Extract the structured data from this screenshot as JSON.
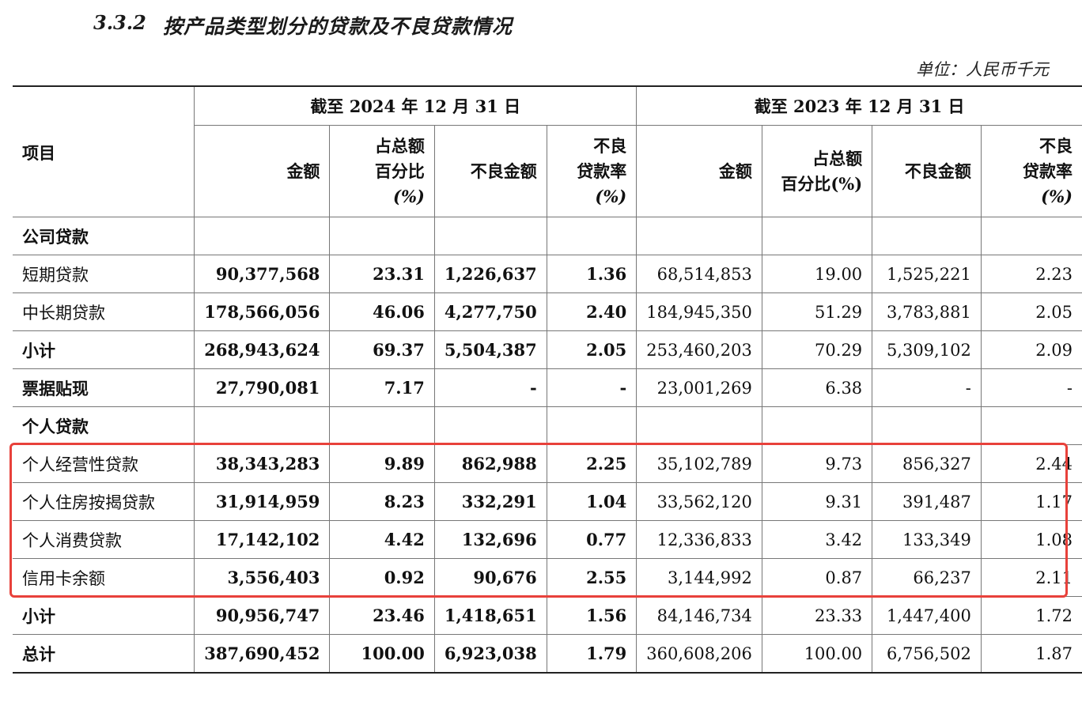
{
  "section_number": "3.3.2",
  "section_title": "按产品类型划分的贷款及不良贷款情况",
  "unit_label": "单位：人民币千元",
  "header": {
    "item": "项目",
    "period_2024": "截至 2024 年 12 月 31 日",
    "period_2023": "截至 2023 年 12 月 31 日",
    "col_amount": "金额",
    "col_share_line1": "占总额",
    "col_share_line2": "百分比",
    "col_share_line3": "(%)",
    "col_share_2023_line2": "百分比(%)",
    "col_npl_amount": "不良金额",
    "col_npl_rate_line1": "不良",
    "col_npl_rate_line2": "贷款率",
    "col_npl_rate_line3": "(%)"
  },
  "rows": [
    {
      "label": "公司贷款",
      "type": "section",
      "values": [
        "",
        "",
        "",
        "",
        "",
        "",
        "",
        ""
      ]
    },
    {
      "label": "短期贷款",
      "type": "item",
      "values": [
        "90,377,568",
        "23.31",
        "1,226,637",
        "1.36",
        "68,514,853",
        "19.00",
        "1,525,221",
        "2.23"
      ]
    },
    {
      "label": "中长期贷款",
      "type": "item",
      "values": [
        "178,566,056",
        "46.06",
        "4,277,750",
        "2.40",
        "184,945,350",
        "51.29",
        "3,783,881",
        "2.05"
      ]
    },
    {
      "label": "小计",
      "type": "subtotal",
      "values": [
        "268,943,624",
        "69.37",
        "5,504,387",
        "2.05",
        "253,460,203",
        "70.29",
        "5,309,102",
        "2.09"
      ]
    },
    {
      "label": "票据贴现",
      "type": "subtotal",
      "values": [
        "27,790,081",
        "7.17",
        "-",
        "-",
        "23,001,269",
        "6.38",
        "-",
        "-"
      ]
    },
    {
      "label": "个人贷款",
      "type": "section",
      "values": [
        "",
        "",
        "",
        "",
        "",
        "",
        "",
        ""
      ]
    },
    {
      "label": "个人经营性贷款",
      "type": "item",
      "values": [
        "38,343,283",
        "9.89",
        "862,988",
        "2.25",
        "35,102,789",
        "9.73",
        "856,327",
        "2.44"
      ]
    },
    {
      "label": "个人住房按揭贷款",
      "type": "item",
      "values": [
        "31,914,959",
        "8.23",
        "332,291",
        "1.04",
        "33,562,120",
        "9.31",
        "391,487",
        "1.17"
      ]
    },
    {
      "label": "个人消费贷款",
      "type": "item",
      "values": [
        "17,142,102",
        "4.42",
        "132,696",
        "0.77",
        "12,336,833",
        "3.42",
        "133,349",
        "1.08"
      ]
    },
    {
      "label": "信用卡余额",
      "type": "item",
      "values": [
        "3,556,403",
        "0.92",
        "90,676",
        "2.55",
        "3,144,992",
        "0.87",
        "66,237",
        "2.11"
      ]
    },
    {
      "label": "小计",
      "type": "subtotal",
      "values": [
        "90,956,747",
        "23.46",
        "1,418,651",
        "1.56",
        "84,146,734",
        "23.33",
        "1,447,400",
        "1.72"
      ]
    },
    {
      "label": "总计",
      "type": "subtotal",
      "values": [
        "387,690,452",
        "100.00",
        "6,923,038",
        "1.79",
        "360,608,206",
        "100.00",
        "6,756,502",
        "1.87"
      ]
    }
  ],
  "highlight_color": "#e8413b"
}
